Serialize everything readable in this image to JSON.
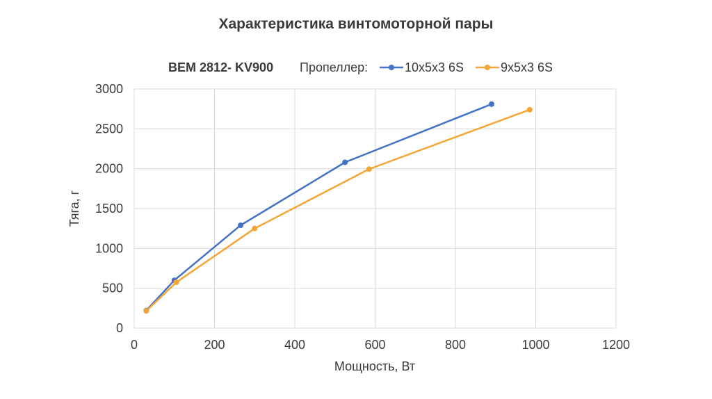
{
  "chart_data": {
    "type": "line",
    "title": "Характеристика винтомоторной пары",
    "motor_label": "BEM 2812- KV900",
    "legend_prefix": "Пропеллер:",
    "xlabel": "Мощность, Вт",
    "ylabel": "Тяга, г",
    "xlim": [
      0,
      1200
    ],
    "ylim": [
      0,
      3000
    ],
    "xticks": [
      0,
      200,
      400,
      600,
      800,
      1000,
      1200
    ],
    "yticks": [
      0,
      500,
      1000,
      1500,
      2000,
      2500,
      3000
    ],
    "grid": true,
    "legend_position": "top",
    "series": [
      {
        "name": "10x5x3 6S",
        "color": "#4472C4",
        "points": [
          [
            30,
            220
          ],
          [
            100,
            600
          ],
          [
            265,
            1290
          ],
          [
            525,
            2080
          ],
          [
            890,
            2810
          ]
        ]
      },
      {
        "name": "9x5x3 6S",
        "color": "#F4A536",
        "points": [
          [
            30,
            215
          ],
          [
            105,
            575
          ],
          [
            300,
            1250
          ],
          [
            585,
            1995
          ],
          [
            985,
            2740
          ]
        ]
      }
    ]
  }
}
